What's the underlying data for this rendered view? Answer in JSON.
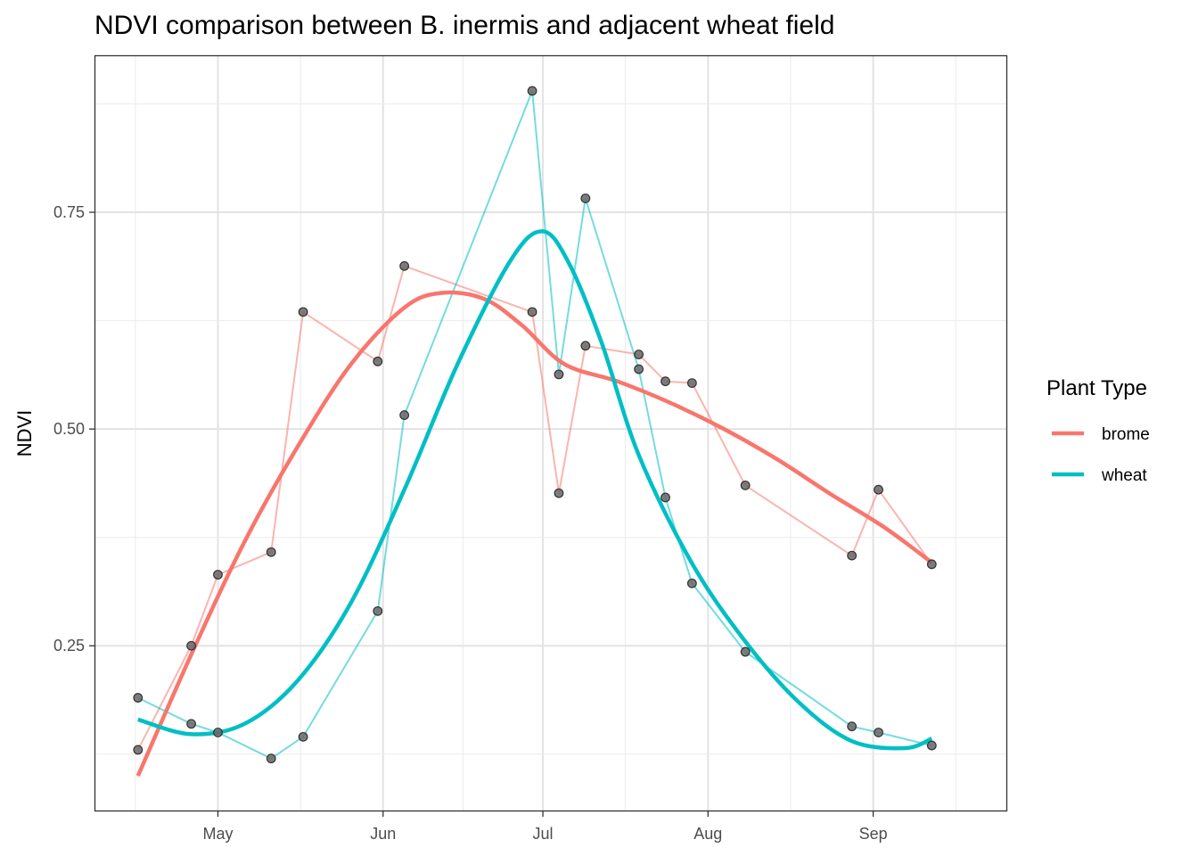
{
  "chart_data": {
    "type": "line",
    "title": "NDVI comparison between B. inermis and adjacent wheat field",
    "xlabel": "",
    "ylabel": "NDVI",
    "x_tick_labels": [
      "May",
      "Jun",
      "Jul",
      "Aug",
      "Sep"
    ],
    "x_ticks": [
      "2019-05-01",
      "2019-06-01",
      "2019-07-01",
      "2019-08-01",
      "2019-09-01"
    ],
    "y_tick_labels": [
      "0.25",
      "0.50",
      "0.75"
    ],
    "y_ticks": [
      0.25,
      0.5,
      0.75
    ],
    "xlim": [
      "2019-04-08",
      "2019-09-26"
    ],
    "ylim": [
      0.06,
      0.93
    ],
    "grid": true,
    "legend": {
      "title": "Plant Type",
      "position": "right"
    },
    "series": [
      {
        "name": "brome",
        "color": "#F8766D",
        "points": [
          {
            "x": "2019-04-16",
            "y": 0.13
          },
          {
            "x": "2019-04-26",
            "y": 0.25
          },
          {
            "x": "2019-05-01",
            "y": 0.332
          },
          {
            "x": "2019-05-11",
            "y": 0.358
          },
          {
            "x": "2019-05-17",
            "y": 0.635
          },
          {
            "x": "2019-05-31",
            "y": 0.578
          },
          {
            "x": "2019-06-05",
            "y": 0.688
          },
          {
            "x": "2019-06-29",
            "y": 0.635
          },
          {
            "x": "2019-07-04",
            "y": 0.426
          },
          {
            "x": "2019-07-09",
            "y": 0.596
          },
          {
            "x": "2019-07-19",
            "y": 0.586
          },
          {
            "x": "2019-07-24",
            "y": 0.555
          },
          {
            "x": "2019-07-29",
            "y": 0.553
          },
          {
            "x": "2019-08-08",
            "y": 0.435
          },
          {
            "x": "2019-08-28",
            "y": 0.354
          },
          {
            "x": "2019-09-02",
            "y": 0.43
          },
          {
            "x": "2019-09-12",
            "y": 0.344
          }
        ],
        "smooth": [
          {
            "x": "2019-04-16",
            "y": 0.1
          },
          {
            "x": "2019-04-26",
            "y": 0.24
          },
          {
            "x": "2019-05-06",
            "y": 0.37
          },
          {
            "x": "2019-05-16",
            "y": 0.48
          },
          {
            "x": "2019-05-26",
            "y": 0.575
          },
          {
            "x": "2019-06-05",
            "y": 0.64
          },
          {
            "x": "2019-06-12",
            "y": 0.657
          },
          {
            "x": "2019-06-20",
            "y": 0.65
          },
          {
            "x": "2019-06-27",
            "y": 0.62
          },
          {
            "x": "2019-07-05",
            "y": 0.575
          },
          {
            "x": "2019-07-15",
            "y": 0.555
          },
          {
            "x": "2019-07-25",
            "y": 0.53
          },
          {
            "x": "2019-08-04",
            "y": 0.5
          },
          {
            "x": "2019-08-14",
            "y": 0.465
          },
          {
            "x": "2019-08-24",
            "y": 0.425
          },
          {
            "x": "2019-09-03",
            "y": 0.387
          },
          {
            "x": "2019-09-12",
            "y": 0.346
          }
        ]
      },
      {
        "name": "wheat",
        "color": "#00BFC4",
        "points": [
          {
            "x": "2019-04-16",
            "y": 0.19
          },
          {
            "x": "2019-04-26",
            "y": 0.16
          },
          {
            "x": "2019-05-01",
            "y": 0.15
          },
          {
            "x": "2019-05-11",
            "y": 0.12
          },
          {
            "x": "2019-05-17",
            "y": 0.145
          },
          {
            "x": "2019-05-31",
            "y": 0.29
          },
          {
            "x": "2019-06-05",
            "y": 0.516
          },
          {
            "x": "2019-06-29",
            "y": 0.89
          },
          {
            "x": "2019-07-04",
            "y": 0.563
          },
          {
            "x": "2019-07-09",
            "y": 0.766
          },
          {
            "x": "2019-07-19",
            "y": 0.569
          },
          {
            "x": "2019-07-24",
            "y": 0.421
          },
          {
            "x": "2019-07-29",
            "y": 0.322
          },
          {
            "x": "2019-08-08",
            "y": 0.243
          },
          {
            "x": "2019-08-28",
            "y": 0.157
          },
          {
            "x": "2019-09-02",
            "y": 0.15
          },
          {
            "x": "2019-09-12",
            "y": 0.135
          }
        ],
        "smooth": [
          {
            "x": "2019-04-16",
            "y": 0.165
          },
          {
            "x": "2019-04-26",
            "y": 0.148
          },
          {
            "x": "2019-05-06",
            "y": 0.16
          },
          {
            "x": "2019-05-16",
            "y": 0.21
          },
          {
            "x": "2019-05-26",
            "y": 0.3
          },
          {
            "x": "2019-06-05",
            "y": 0.43
          },
          {
            "x": "2019-06-15",
            "y": 0.575
          },
          {
            "x": "2019-06-25",
            "y": 0.695
          },
          {
            "x": "2019-07-01",
            "y": 0.728
          },
          {
            "x": "2019-07-06",
            "y": 0.69
          },
          {
            "x": "2019-07-12",
            "y": 0.6
          },
          {
            "x": "2019-07-19",
            "y": 0.47
          },
          {
            "x": "2019-07-29",
            "y": 0.345
          },
          {
            "x": "2019-08-08",
            "y": 0.255
          },
          {
            "x": "2019-08-18",
            "y": 0.185
          },
          {
            "x": "2019-08-28",
            "y": 0.14
          },
          {
            "x": "2019-09-07",
            "y": 0.132
          },
          {
            "x": "2019-09-12",
            "y": 0.143
          }
        ]
      }
    ]
  }
}
